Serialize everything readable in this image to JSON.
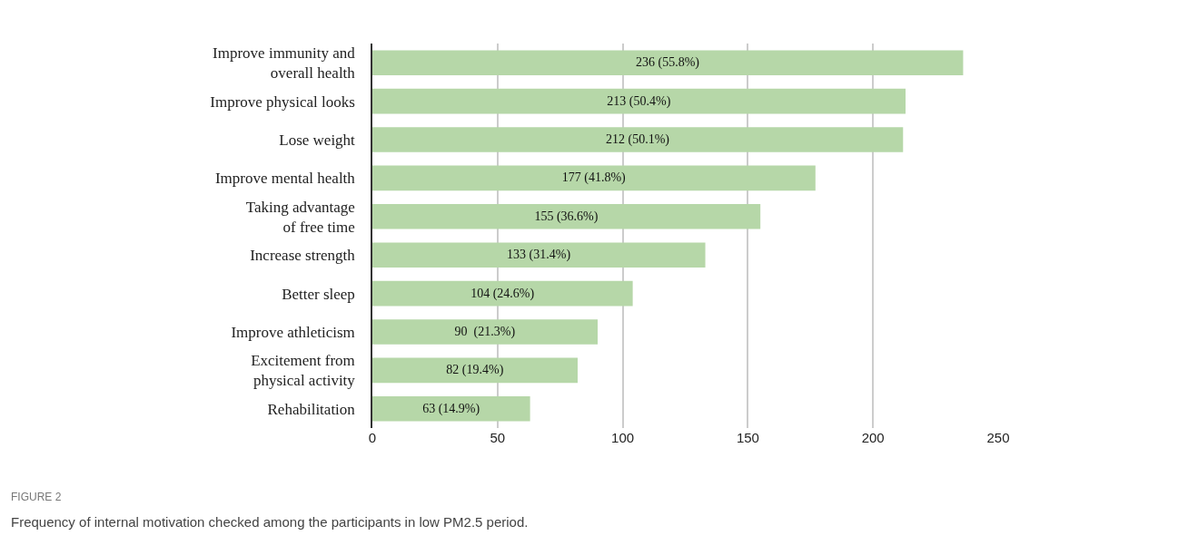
{
  "chart_data": {
    "type": "bar",
    "orientation": "horizontal",
    "categories": [
      "Improve immunity and\noverall health",
      "Improve physical looks",
      "Lose weight",
      "Improve mental health",
      "Taking advantage\nof free time",
      "Increase strength",
      "Better sleep",
      "Improve athleticism",
      "Excitement from\nphysical activity",
      "Rehabilitation"
    ],
    "values": [
      236,
      213,
      212,
      177,
      155,
      133,
      104,
      90,
      82,
      63
    ],
    "value_labels": [
      "236 (55.8%)",
      "213 (50.4%)",
      "212 (50.1%)",
      "177 (41.8%)",
      "155 (36.6%)",
      "133 (31.4%)",
      "104 (24.6%)",
      "90  (21.3%)",
      "82 (19.4%)",
      "63 (14.9%)"
    ],
    "color": "#b6d7a8",
    "xlim": [
      0,
      250
    ],
    "xticks": [
      0,
      50,
      100,
      150,
      200,
      250
    ],
    "grid": "x",
    "legend": false,
    "annotations": [
      "FIGURE 2",
      "Frequency of internal motivation checked among the participants in low PM2.5 period."
    ]
  }
}
